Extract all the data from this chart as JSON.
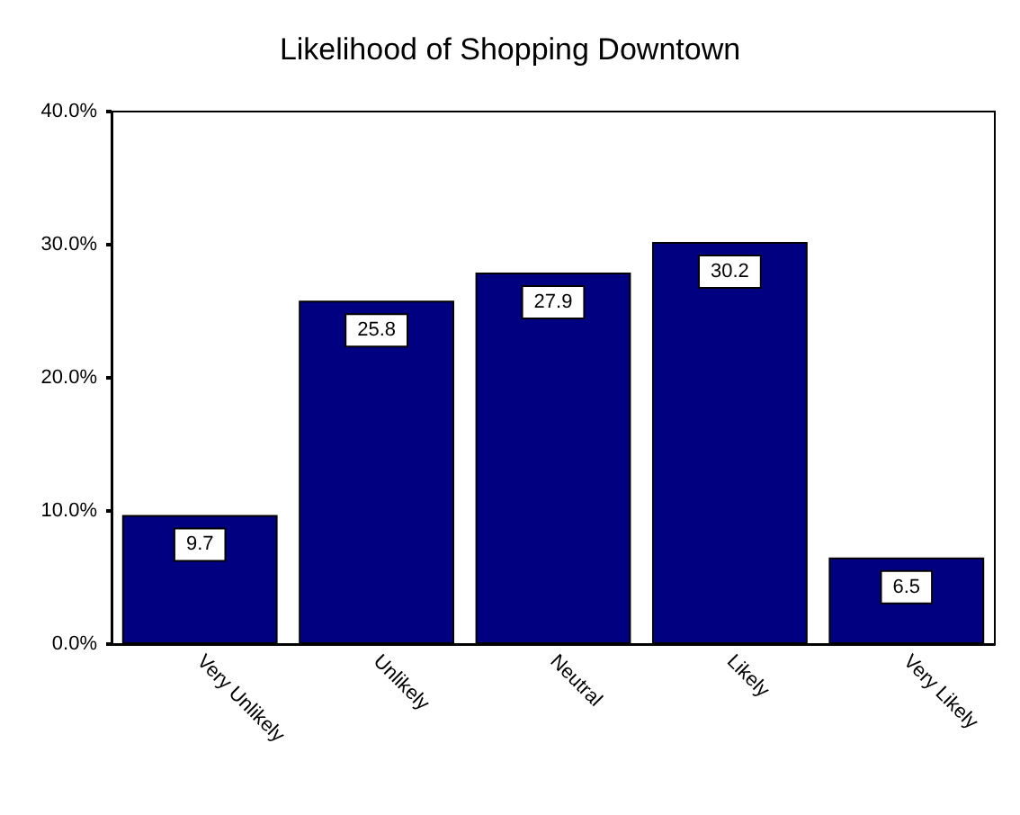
{
  "chart_data": {
    "type": "bar",
    "title": "Likelihood of Shopping Downtown",
    "categories": [
      "Very Unlikely",
      "Unlikely",
      "Neutral",
      "Likely",
      "Very Likely"
    ],
    "values": [
      9.7,
      25.8,
      27.9,
      30.2,
      6.5
    ],
    "color": "#000080",
    "ylim": [
      0,
      40
    ],
    "yticks": [
      {
        "value": 0,
        "label": "0.0%"
      },
      {
        "value": 10,
        "label": "10.0%"
      },
      {
        "value": 20,
        "label": "20.0%"
      },
      {
        "value": 30,
        "label": "30.0%"
      },
      {
        "value": 40,
        "label": "40.0%"
      }
    ],
    "data_labels": true,
    "grid": false
  }
}
